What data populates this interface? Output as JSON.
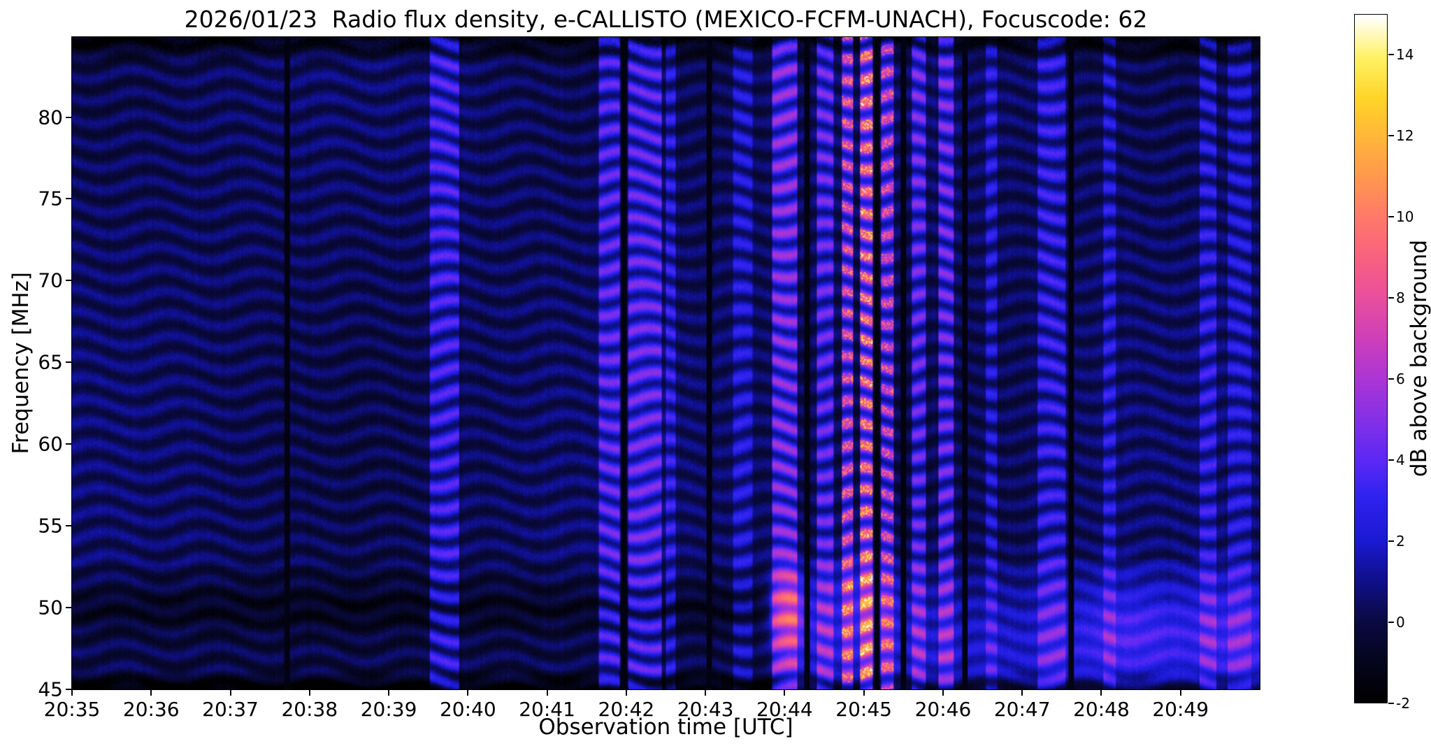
{
  "chart_data": {
    "type": "heatmap",
    "title": "2026/01/23  Radio flux density, e-CALLISTO (MEXICO-FCFM-UNACH), Focuscode: 62",
    "xlabel": "Observation time [UTC]",
    "ylabel": "Frequency [MHz]",
    "x_ticks": [
      "20:35",
      "20:36",
      "20:37",
      "20:38",
      "20:39",
      "20:40",
      "20:41",
      "20:42",
      "20:43",
      "20:44",
      "20:45",
      "20:46",
      "20:47",
      "20:48",
      "20:49"
    ],
    "x_range_min": [
      0,
      15
    ],
    "x_start_utc": "20:35",
    "y_ticks": [
      45,
      50,
      55,
      60,
      65,
      70,
      75,
      80
    ],
    "y_range_mhz": [
      45,
      84.9
    ],
    "grid": false,
    "colorbar": {
      "label": "dB above background",
      "min": -2,
      "max": 15,
      "ticks": [
        -2,
        0,
        2,
        4,
        6,
        8,
        10,
        12,
        14
      ],
      "stops": [
        [
          0,
          "#000000"
        ],
        [
          0.06,
          "#05051e"
        ],
        [
          0.12,
          "#0a0a45"
        ],
        [
          0.18,
          "#10108f"
        ],
        [
          0.235,
          "#1a1ad2"
        ],
        [
          0.3,
          "#3023f0"
        ],
        [
          0.35,
          "#5b28f5"
        ],
        [
          0.41,
          "#8430e8"
        ],
        [
          0.47,
          "#ab35d5"
        ],
        [
          0.53,
          "#cf3fba"
        ],
        [
          0.59,
          "#e94f9c"
        ],
        [
          0.65,
          "#f9627f"
        ],
        [
          0.71,
          "#ff7a68"
        ],
        [
          0.76,
          "#ff9650"
        ],
        [
          0.82,
          "#ffb43a"
        ],
        [
          0.88,
          "#ffd428"
        ],
        [
          0.94,
          "#fff266"
        ],
        [
          1,
          "#ffffff"
        ]
      ]
    },
    "background_db": 0.3,
    "ripple": {
      "period_mhz": 1.35,
      "amplitude_db": 0.72,
      "drift_amp": 1.7,
      "drift_rate": 5.2
    },
    "vertical_bands": [
      {
        "t0": 4.52,
        "t1": 4.88,
        "boost": 2.8
      },
      {
        "t0": 6.65,
        "t1": 6.92,
        "boost": 3.2
      },
      {
        "t0": 7.02,
        "t1": 7.45,
        "boost": 3.4
      },
      {
        "t0": 7.5,
        "t1": 7.62,
        "boost": 2.2
      },
      {
        "t0": 8.35,
        "t1": 8.6,
        "boost": 1.8
      },
      {
        "t0": 8.84,
        "t1": 9.16,
        "boost": 4.2
      },
      {
        "t0": 9.4,
        "t1": 9.62,
        "boost": 3.5
      },
      {
        "t0": 9.72,
        "t1": 9.86,
        "boost": 5.5
      },
      {
        "t0": 9.95,
        "t1": 10.12,
        "boost": 7.0
      },
      {
        "t0": 10.22,
        "t1": 10.38,
        "boost": 5.0
      },
      {
        "t0": 10.6,
        "t1": 10.78,
        "boost": 3.6
      },
      {
        "t0": 10.95,
        "t1": 11.14,
        "boost": 3.8
      },
      {
        "t0": 11.55,
        "t1": 11.68,
        "boost": 2.0
      },
      {
        "t0": 12.2,
        "t1": 12.55,
        "boost": 2.4
      },
      {
        "t0": 13.02,
        "t1": 13.18,
        "boost": 2.0
      },
      {
        "t0": 14.25,
        "t1": 14.45,
        "boost": 2.2
      },
      {
        "t0": 14.6,
        "t1": 14.9,
        "boost": 1.8
      }
    ],
    "dark_columns": [
      2.72,
      6.97,
      8.05,
      9.28,
      10.17,
      10.5,
      11.28,
      12.62
    ],
    "blobs": [
      {
        "t": 9.05,
        "f": 49.8,
        "st": 0.18,
        "sf": 1.8,
        "amp": 4.0
      },
      {
        "t": 10.02,
        "f": 50.5,
        "st": 0.3,
        "sf": 2.2,
        "amp": 2.0
      },
      {
        "t": 13.35,
        "f": 48.5,
        "st": 0.5,
        "sf": 2.0,
        "amp": 1.5
      },
      {
        "t": 14.75,
        "f": 48.5,
        "st": 0.45,
        "sf": 2.2,
        "amp": 1.3
      }
    ],
    "bottom_glow": {
      "t0": 8.8,
      "f_center": 47.5,
      "sigma": 3.2,
      "f_max": 53,
      "boost": 1.7
    },
    "dark_50_band": {
      "f_center": 49.9,
      "sigma": 0.95,
      "drop": 0.9,
      "t_max": 8.8
    },
    "summary_grid_db": {
      "minute_cols_utc": [
        "20:35",
        "20:36",
        "20:37",
        "20:38",
        "20:39",
        "20:40",
        "20:41",
        "20:42",
        "20:43",
        "20:44",
        "20:45",
        "20:46",
        "20:47",
        "20:48",
        "20:49"
      ],
      "freq_bins_mhz": [
        [
          45,
          50
        ],
        [
          50,
          55
        ],
        [
          55,
          60
        ],
        [
          60,
          65
        ],
        [
          65,
          70
        ],
        [
          70,
          75
        ],
        [
          75,
          80
        ],
        [
          80,
          85
        ]
      ],
      "values": [
        [
          0.1,
          0.1,
          0.1,
          0.1,
          0.4,
          0.2,
          0.2,
          0.6,
          1.0,
          2.2,
          1.8,
          1.2,
          1.0,
          1.4,
          1.6
        ],
        [
          0.3,
          0.3,
          0.3,
          0.3,
          0.6,
          0.4,
          0.4,
          0.9,
          1.4,
          2.6,
          2.0,
          1.0,
          0.9,
          1.2,
          1.4
        ],
        [
          0.4,
          0.4,
          0.4,
          0.4,
          0.8,
          0.5,
          1.0,
          0.8,
          1.6,
          3.0,
          1.8,
          0.8,
          0.8,
          0.7,
          0.9
        ],
        [
          0.5,
          0.5,
          0.4,
          0.4,
          0.9,
          0.5,
          1.2,
          0.8,
          1.8,
          3.2,
          1.8,
          0.8,
          0.9,
          0.7,
          0.9
        ],
        [
          0.5,
          0.5,
          0.5,
          0.4,
          0.9,
          0.5,
          1.2,
          0.9,
          1.8,
          3.4,
          2.0,
          0.9,
          0.9,
          0.8,
          1.0
        ],
        [
          0.5,
          0.5,
          0.5,
          0.4,
          1.0,
          0.6,
          1.3,
          0.9,
          2.0,
          3.6,
          2.0,
          0.9,
          1.0,
          0.8,
          1.0
        ],
        [
          0.4,
          0.4,
          0.4,
          0.4,
          1.0,
          0.6,
          1.3,
          0.9,
          2.0,
          3.8,
          2.2,
          1.0,
          1.0,
          0.8,
          1.0
        ],
        [
          0.2,
          0.2,
          0.2,
          0.2,
          0.8,
          0.4,
          1.0,
          0.7,
          1.6,
          3.0,
          1.8,
          0.8,
          0.8,
          0.6,
          0.8
        ]
      ]
    }
  }
}
